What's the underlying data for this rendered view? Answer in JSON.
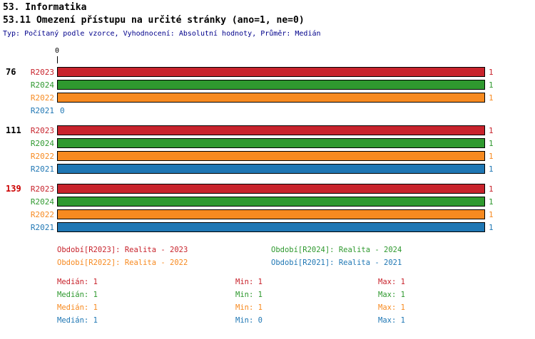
{
  "colors": {
    "series": {
      "R2023": "#c8232c",
      "R2024": "#2f992f",
      "R2022": "#f78a20",
      "R2021": "#1f77b4"
    },
    "highlight": "#cc0000",
    "meta_text": "#00008b"
  },
  "header": {
    "title": "53. Informatika",
    "subtitle": "53.11 Omezení přístupu na určité stránky (ano=1, ne=0)",
    "meta": "Typ: Počítaný podle vzorce, Vyhodnocení: Absolutní hodnoty, Průměr: Medián"
  },
  "chart_data": {
    "type": "bar",
    "orientation": "horizontal",
    "axis": {
      "origin_label": "0",
      "xlim": [
        0,
        1
      ]
    },
    "series_order": [
      "R2023",
      "R2024",
      "R2022",
      "R2021"
    ],
    "groups": [
      {
        "label": "76",
        "highlight": false,
        "bars": [
          {
            "series": "R2023",
            "value": 1
          },
          {
            "series": "R2024",
            "value": 1
          },
          {
            "series": "R2022",
            "value": 1
          },
          {
            "series": "R2021",
            "value": 0
          }
        ]
      },
      {
        "label": "111",
        "highlight": false,
        "bars": [
          {
            "series": "R2023",
            "value": 1
          },
          {
            "series": "R2024",
            "value": 1
          },
          {
            "series": "R2022",
            "value": 1
          },
          {
            "series": "R2021",
            "value": 1
          }
        ]
      },
      {
        "label": "139",
        "highlight": true,
        "bars": [
          {
            "series": "R2023",
            "value": 1
          },
          {
            "series": "R2024",
            "value": 1
          },
          {
            "series": "R2022",
            "value": 1
          },
          {
            "series": "R2021",
            "value": 1
          }
        ]
      }
    ],
    "legend": [
      {
        "series": "R2023",
        "label": "Období[R2023]: Realita - 2023"
      },
      {
        "series": "R2024",
        "label": "Období[R2024]: Realita - 2024"
      },
      {
        "series": "R2022",
        "label": "Období[R2022]: Realita - 2022"
      },
      {
        "series": "R2021",
        "label": "Období[R2021]: Realita - 2021"
      }
    ],
    "stats_labels": {
      "median": "Medián",
      "min": "Min",
      "max": "Max"
    },
    "stats": [
      {
        "series": "R2023",
        "median": 1,
        "min": 1,
        "max": 1
      },
      {
        "series": "R2024",
        "median": 1,
        "min": 1,
        "max": 1
      },
      {
        "series": "R2022",
        "median": 1,
        "min": 1,
        "max": 1
      },
      {
        "series": "R2021",
        "median": 1,
        "min": 0,
        "max": 1
      }
    ]
  }
}
